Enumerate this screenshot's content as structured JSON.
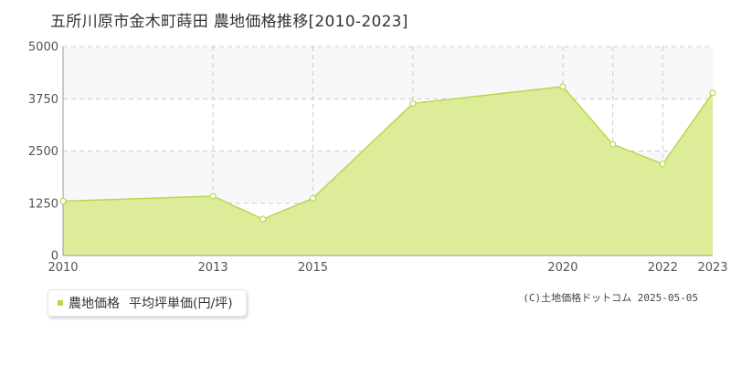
{
  "title": "五所川原市金木町蒔田 農地価格推移[2010-2023]",
  "legend": {
    "series_label": "農地価格",
    "unit_label": "平均坪単価(円/坪)"
  },
  "copyright": "(C)土地価格ドットコム 2025-05-05",
  "colors": {
    "fill": "#dcec98",
    "line": "#b7d84f",
    "band": "#f8f8fa",
    "grid": "#cccccc",
    "axis": "#999999"
  },
  "chart_data": {
    "type": "area",
    "title": "五所川原市金木町蒔田 農地価格推移[2010-2023]",
    "xlabel": "",
    "ylabel": "",
    "x": [
      2010,
      2013,
      2014,
      2015,
      2017,
      2020,
      2021,
      2022,
      2023
    ],
    "xlim": [
      2010,
      2023
    ],
    "ylim": [
      0,
      5000
    ],
    "yticks": [
      0,
      1250,
      2500,
      3750,
      5000
    ],
    "xtick_labels": [
      2010,
      2013,
      2015,
      2020,
      2022,
      2023
    ],
    "xgrid": [
      2013,
      2015,
      2017,
      2020,
      2021,
      2022
    ],
    "grid": true,
    "legend_position": "bottom-left",
    "series": [
      {
        "name": "農地価格",
        "values": [
          1300,
          1420,
          870,
          1370,
          3640,
          4040,
          2660,
          2190,
          3890
        ]
      }
    ]
  }
}
